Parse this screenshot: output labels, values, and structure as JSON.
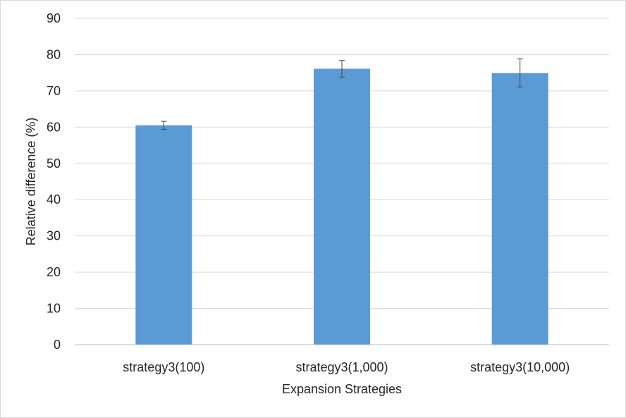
{
  "chart_data": {
    "type": "bar",
    "categories": [
      "strategy3(100)",
      "strategy3(1,000)",
      "strategy3(10,000)"
    ],
    "values": [
      60.5,
      76.1,
      74.9
    ],
    "error_bars": [
      {
        "low": 59.4,
        "high": 61.6
      },
      {
        "low": 73.8,
        "high": 78.4
      },
      {
        "low": 71.1,
        "high": 78.8
      }
    ],
    "xlabel": "Expansion Strategies",
    "ylabel": "Relative difference (%)",
    "ylim": [
      0,
      90
    ],
    "yticks": [
      0,
      10,
      20,
      30,
      40,
      50,
      60,
      70,
      80,
      90
    ],
    "grid": true,
    "legend": "none",
    "colors": {
      "bar": "#5b9bd5",
      "gridline": "#d9d9d9",
      "text": "#262626",
      "error_bar": "#404040"
    }
  }
}
